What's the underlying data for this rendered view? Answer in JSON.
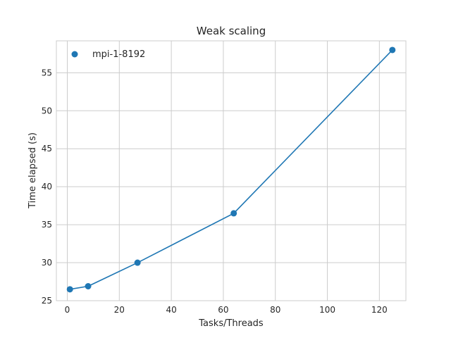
{
  "chart_data": {
    "type": "line",
    "title": "Weak scaling",
    "xlabel": "Tasks/Threads",
    "ylabel": "Time elapsed (s)",
    "xlim": [
      -4.2,
      130.2
    ],
    "ylim": [
      25,
      59.2
    ],
    "xticks": [
      0,
      20,
      40,
      60,
      80,
      100,
      120
    ],
    "yticks": [
      25,
      30,
      35,
      40,
      45,
      50,
      55
    ],
    "grid": true,
    "legend_position": "top-left",
    "series": [
      {
        "name": "mpi-1-8192",
        "color": "#1f77b4",
        "marker": "circle",
        "x": [
          1,
          8,
          27,
          64,
          125
        ],
        "y": [
          26.5,
          26.9,
          30.0,
          36.5,
          58.0
        ]
      }
    ]
  }
}
